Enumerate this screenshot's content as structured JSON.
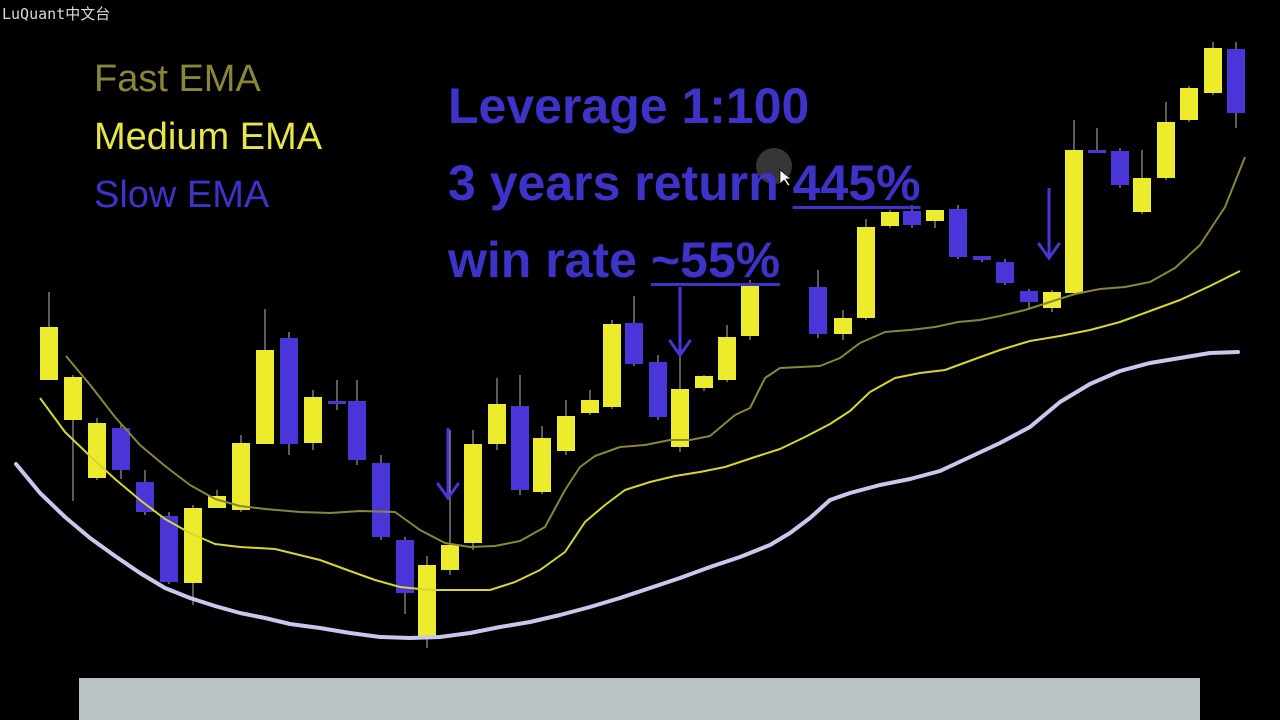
{
  "watermark": "LuQuant中文台",
  "legend": {
    "fast": "Fast EMA",
    "medium": "Medium EMA",
    "slow": "Slow EMA"
  },
  "stats": {
    "leverage": "Leverage 1:100",
    "return_prefix": "3 years return ",
    "return_value": "445%",
    "winrate_prefix": "win rate ",
    "winrate_value": "~55%"
  },
  "colors": {
    "bull": "#ecec2c",
    "bear": "#4a36d8",
    "fast_ema": "#8a8638",
    "medium_ema": "#d6d62e",
    "slow_ema": "#c8c8ee",
    "arrow": "#4a36d8"
  },
  "chart_data": {
    "type": "candlestick",
    "ohlc": [
      [
        49,
        380,
        327,
        322,
        371,
        292,
        380
      ],
      [
        73,
        420,
        377,
        374,
        500,
        375,
        501
      ],
      [
        97,
        478,
        423,
        420,
        476,
        418,
        480
      ],
      [
        121,
        428,
        470,
        426,
        472,
        423,
        479
      ],
      [
        145,
        482,
        512,
        470,
        515,
        470,
        515
      ],
      [
        169,
        516,
        582,
        513,
        584,
        512,
        584
      ],
      [
        193,
        583,
        508,
        506,
        585,
        505,
        605
      ],
      [
        217,
        508,
        496,
        492,
        508,
        490,
        508
      ],
      [
        241,
        510,
        443,
        440,
        512,
        435,
        512
      ],
      [
        265,
        444,
        350,
        300,
        444,
        309,
        440
      ],
      [
        289,
        338,
        444,
        332,
        455,
        332,
        455
      ],
      [
        313,
        443,
        397,
        395,
        445,
        390,
        450
      ],
      [
        337,
        401,
        401,
        395,
        401,
        380,
        410
      ],
      [
        357,
        401,
        460,
        398,
        464,
        380,
        465
      ],
      [
        381,
        463,
        537,
        455,
        540,
        455,
        540
      ],
      [
        405,
        540,
        593,
        537,
        615,
        537,
        614
      ],
      [
        427,
        636,
        565,
        560,
        640,
        556,
        648
      ],
      [
        450,
        570,
        545,
        430,
        573,
        430,
        575
      ],
      [
        473,
        543,
        444,
        438,
        545,
        430,
        550
      ],
      [
        497,
        444,
        404,
        389,
        446,
        378,
        450
      ],
      [
        520,
        406,
        490,
        405,
        493,
        375,
        495
      ],
      [
        542,
        492,
        438,
        429,
        494,
        426,
        494
      ],
      [
        566,
        451,
        416,
        407,
        454,
        400,
        455
      ],
      [
        590,
        413,
        400,
        390,
        415,
        390,
        415
      ],
      [
        612,
        407,
        324,
        320,
        409,
        320,
        409
      ],
      [
        634,
        323,
        364,
        320,
        366,
        296,
        366
      ],
      [
        658,
        362,
        417,
        358,
        419,
        355,
        420
      ],
      [
        680,
        447,
        389,
        373,
        450,
        355,
        452
      ],
      [
        704,
        388,
        376,
        373,
        391,
        375,
        391
      ],
      [
        727,
        380,
        337,
        330,
        382,
        325,
        382
      ],
      [
        750,
        336,
        286,
        280,
        336,
        280,
        340
      ],
      [
        818,
        287,
        334,
        282,
        338,
        270,
        338
      ],
      [
        843,
        334,
        318,
        315,
        336,
        310,
        340
      ],
      [
        866,
        318,
        227,
        219,
        319,
        219,
        320
      ],
      [
        890,
        226,
        212,
        210,
        228,
        210,
        228
      ],
      [
        912,
        211,
        225,
        205,
        226,
        205,
        228
      ],
      [
        935,
        221,
        210,
        208,
        224,
        210,
        228
      ],
      [
        958,
        209,
        257,
        205,
        259,
        205,
        259
      ],
      [
        982,
        256,
        260,
        256,
        260,
        256,
        262
      ],
      [
        1005,
        262,
        283,
        259,
        285,
        259,
        285
      ],
      [
        1029,
        291,
        302,
        289,
        310,
        289,
        310
      ],
      [
        1052,
        308,
        292,
        290,
        310,
        290,
        312
      ],
      [
        1074,
        293,
        150,
        130,
        293,
        120,
        293
      ],
      [
        1097,
        150,
        150,
        145,
        150,
        128,
        152
      ],
      [
        1120,
        151,
        185,
        149,
        187,
        148,
        188
      ],
      [
        1142,
        212,
        178,
        170,
        214,
        150,
        214
      ],
      [
        1166,
        178,
        122,
        120,
        180,
        102,
        180
      ],
      [
        1189,
        120,
        88,
        86,
        122,
        86,
        122
      ],
      [
        1213,
        93,
        48,
        42,
        95,
        42,
        95
      ],
      [
        1236,
        49,
        113,
        42,
        115,
        42,
        128
      ]
    ],
    "fast_ema": [
      [
        66,
        356
      ],
      [
        91,
        386
      ],
      [
        115,
        417
      ],
      [
        140,
        445
      ],
      [
        165,
        466
      ],
      [
        190,
        485
      ],
      [
        215,
        499
      ],
      [
        240,
        506
      ],
      [
        265,
        509
      ],
      [
        300,
        512
      ],
      [
        330,
        513
      ],
      [
        360,
        511
      ],
      [
        395,
        512
      ],
      [
        420,
        530
      ],
      [
        445,
        543
      ],
      [
        470,
        547
      ],
      [
        495,
        546
      ],
      [
        520,
        541
      ],
      [
        545,
        527
      ],
      [
        565,
        490
      ],
      [
        580,
        467
      ],
      [
        595,
        456
      ],
      [
        620,
        447
      ],
      [
        645,
        445
      ],
      [
        670,
        440
      ],
      [
        690,
        440
      ],
      [
        710,
        436
      ],
      [
        735,
        415
      ],
      [
        750,
        408
      ],
      [
        765,
        378
      ],
      [
        780,
        368
      ],
      [
        800,
        367
      ],
      [
        820,
        366
      ],
      [
        840,
        358
      ],
      [
        860,
        343
      ],
      [
        885,
        332
      ],
      [
        910,
        330
      ],
      [
        935,
        327
      ],
      [
        958,
        322
      ],
      [
        980,
        320
      ],
      [
        1000,
        316
      ],
      [
        1025,
        310
      ],
      [
        1050,
        302
      ],
      [
        1075,
        294
      ],
      [
        1100,
        289
      ],
      [
        1125,
        287
      ],
      [
        1150,
        282
      ],
      [
        1175,
        268
      ],
      [
        1200,
        245
      ],
      [
        1225,
        207
      ],
      [
        1245,
        157
      ]
    ],
    "medium_ema": [
      [
        40,
        398
      ],
      [
        65,
        432
      ],
      [
        90,
        456
      ],
      [
        115,
        479
      ],
      [
        140,
        500
      ],
      [
        165,
        519
      ],
      [
        190,
        533
      ],
      [
        215,
        544
      ],
      [
        240,
        547
      ],
      [
        275,
        549
      ],
      [
        320,
        560
      ],
      [
        350,
        571
      ],
      [
        375,
        580
      ],
      [
        400,
        587
      ],
      [
        430,
        590
      ],
      [
        460,
        590
      ],
      [
        490,
        590
      ],
      [
        515,
        582
      ],
      [
        540,
        570
      ],
      [
        565,
        552
      ],
      [
        585,
        522
      ],
      [
        605,
        505
      ],
      [
        625,
        490
      ],
      [
        650,
        482
      ],
      [
        675,
        476
      ],
      [
        700,
        472
      ],
      [
        725,
        467
      ],
      [
        755,
        457
      ],
      [
        780,
        449
      ],
      [
        805,
        437
      ],
      [
        830,
        424
      ],
      [
        850,
        411
      ],
      [
        870,
        392
      ],
      [
        895,
        378
      ],
      [
        920,
        373
      ],
      [
        945,
        370
      ],
      [
        975,
        359
      ],
      [
        1000,
        350
      ],
      [
        1030,
        341
      ],
      [
        1060,
        336
      ],
      [
        1090,
        330
      ],
      [
        1120,
        322
      ],
      [
        1150,
        311
      ],
      [
        1180,
        300
      ],
      [
        1210,
        286
      ],
      [
        1240,
        271
      ]
    ],
    "slow_ema": [
      [
        16,
        464
      ],
      [
        40,
        493
      ],
      [
        65,
        517
      ],
      [
        90,
        538
      ],
      [
        115,
        556
      ],
      [
        140,
        573
      ],
      [
        165,
        588
      ],
      [
        190,
        598
      ],
      [
        215,
        606
      ],
      [
        240,
        613
      ],
      [
        265,
        618
      ],
      [
        290,
        624
      ],
      [
        320,
        628
      ],
      [
        350,
        633
      ],
      [
        380,
        637
      ],
      [
        410,
        638
      ],
      [
        440,
        637
      ],
      [
        470,
        633
      ],
      [
        500,
        627
      ],
      [
        530,
        622
      ],
      [
        560,
        615
      ],
      [
        590,
        607
      ],
      [
        620,
        598
      ],
      [
        650,
        588
      ],
      [
        680,
        578
      ],
      [
        710,
        567
      ],
      [
        740,
        557
      ],
      [
        770,
        545
      ],
      [
        790,
        533
      ],
      [
        810,
        518
      ],
      [
        830,
        500
      ],
      [
        850,
        493
      ],
      [
        880,
        485
      ],
      [
        910,
        479
      ],
      [
        940,
        471
      ],
      [
        970,
        457
      ],
      [
        1000,
        443
      ],
      [
        1030,
        427
      ],
      [
        1060,
        402
      ],
      [
        1090,
        384
      ],
      [
        1120,
        371
      ],
      [
        1150,
        363
      ],
      [
        1180,
        358
      ],
      [
        1210,
        353
      ],
      [
        1238,
        352
      ]
    ],
    "entry_arrows": [
      [
        448,
        428,
        498
      ],
      [
        680,
        287,
        355
      ],
      [
        1049,
        188,
        258
      ]
    ],
    "cursor": [
      780,
      176
    ]
  }
}
